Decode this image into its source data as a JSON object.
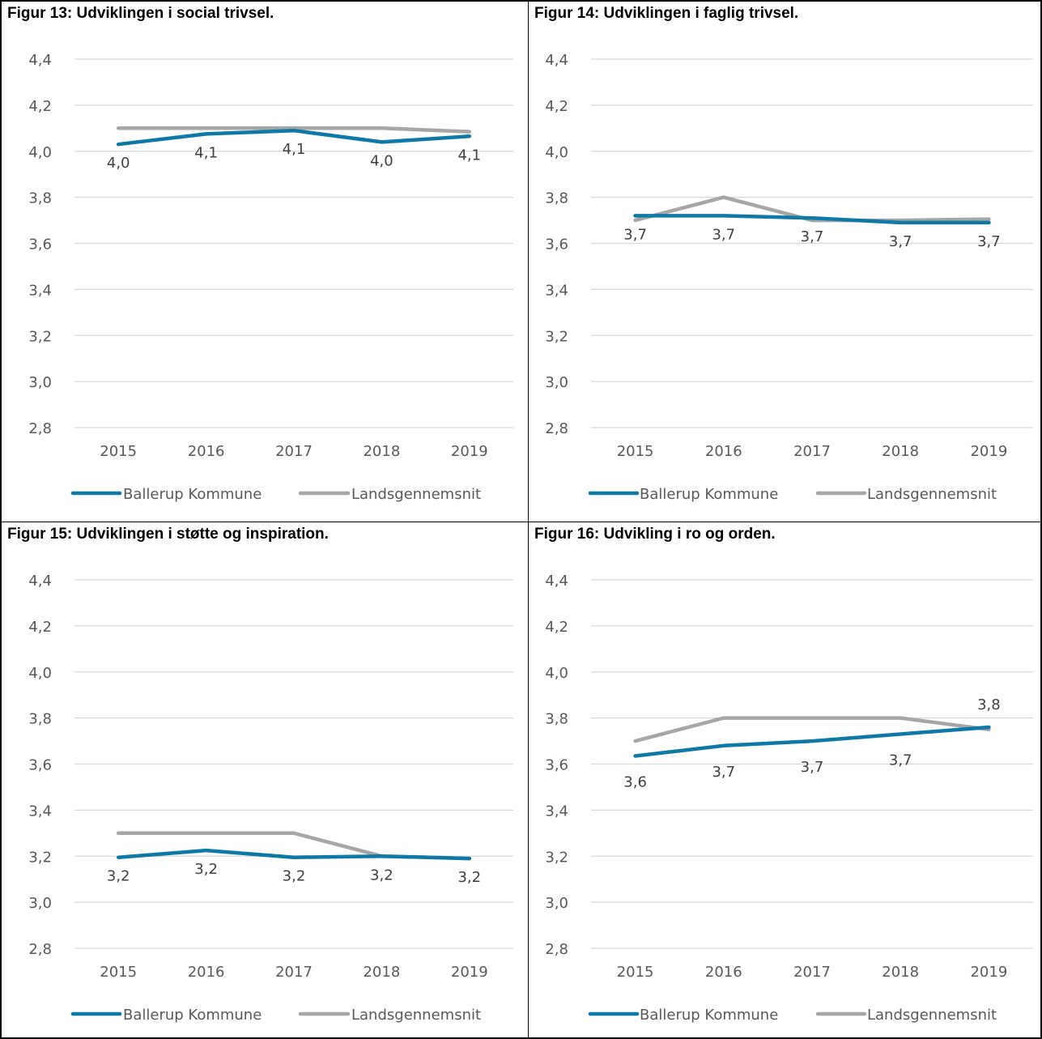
{
  "chart_data": [
    {
      "type": "line",
      "title": "Figur 13: Udviklingen i social trivsel.",
      "categories": [
        "2015",
        "2016",
        "2017",
        "2018",
        "2019"
      ],
      "ylim": [
        2.8,
        4.4
      ],
      "y_ticks": [
        "2,8",
        "3,0",
        "3,2",
        "3,4",
        "3,6",
        "3,8",
        "4,0",
        "4,2",
        "4,4"
      ],
      "grid": true,
      "legend_position": "bottom",
      "series": [
        {
          "name": "Ballerup Kommune",
          "color": "#0E79A6",
          "values": [
            4.03,
            4.075,
            4.09,
            4.04,
            4.065
          ],
          "labels": [
            "4,0",
            "4,1",
            "4,1",
            "4,0",
            "4,1"
          ]
        },
        {
          "name": "Landsgennemsnit",
          "color": "#A6A6A6",
          "values": [
            4.1,
            4.1,
            4.1,
            4.1,
            4.085
          ]
        }
      ]
    },
    {
      "type": "line",
      "title": "Figur 14: Udviklingen i faglig trivsel.",
      "categories": [
        "2015",
        "2016",
        "2017",
        "2018",
        "2019"
      ],
      "ylim": [
        2.8,
        4.4
      ],
      "y_ticks": [
        "2,8",
        "3,0",
        "3,2",
        "3,4",
        "3,6",
        "3,8",
        "4,0",
        "4,2",
        "4,4"
      ],
      "grid": true,
      "legend_position": "bottom",
      "series": [
        {
          "name": "Ballerup Kommune",
          "color": "#0E79A6",
          "values": [
            3.72,
            3.72,
            3.71,
            3.69,
            3.69
          ],
          "labels": [
            "3,7",
            "3,7",
            "3,7",
            "3,7",
            "3,7"
          ]
        },
        {
          "name": "Landsgennemsnit",
          "color": "#A6A6A6",
          "values": [
            3.7,
            3.8,
            3.7,
            3.7,
            3.705
          ]
        }
      ]
    },
    {
      "type": "line",
      "title": "Figur 15: Udviklingen i støtte og inspiration.",
      "categories": [
        "2015",
        "2016",
        "2017",
        "2018",
        "2019"
      ],
      "ylim": [
        2.8,
        4.4
      ],
      "y_ticks": [
        "2,8",
        "3,0",
        "3,2",
        "3,4",
        "3,6",
        "3,8",
        "4,0",
        "4,2",
        "4,4"
      ],
      "grid": true,
      "legend_position": "bottom",
      "series": [
        {
          "name": "Ballerup Kommune",
          "color": "#0E79A6",
          "values": [
            3.195,
            3.225,
            3.195,
            3.2,
            3.19
          ],
          "labels": [
            "3,2",
            "3,2",
            "3,2",
            "3,2",
            "3,2"
          ]
        },
        {
          "name": "Landsgennemsnit",
          "color": "#A6A6A6",
          "values": [
            3.3,
            3.3,
            3.3,
            3.2,
            3.19
          ]
        }
      ]
    },
    {
      "type": "line",
      "title": "Figur 16: Udvikling i ro og orden.",
      "categories": [
        "2015",
        "2016",
        "2017",
        "2018",
        "2019"
      ],
      "ylim": [
        2.8,
        4.4
      ],
      "y_ticks": [
        "2,8",
        "3,0",
        "3,2",
        "3,4",
        "3,6",
        "3,8",
        "4,0",
        "4,2",
        "4,4"
      ],
      "grid": true,
      "legend_position": "bottom",
      "series": [
        {
          "name": "Ballerup Kommune",
          "color": "#0E79A6",
          "values": [
            3.635,
            3.68,
            3.7,
            3.73,
            3.76
          ],
          "labels": [
            "3,6",
            "3,7",
            "3,7",
            "3,7",
            "3,8"
          ]
        },
        {
          "name": "Landsgennemsnit",
          "color": "#A6A6A6",
          "values": [
            3.7,
            3.8,
            3.8,
            3.8,
            3.75
          ]
        }
      ]
    }
  ]
}
